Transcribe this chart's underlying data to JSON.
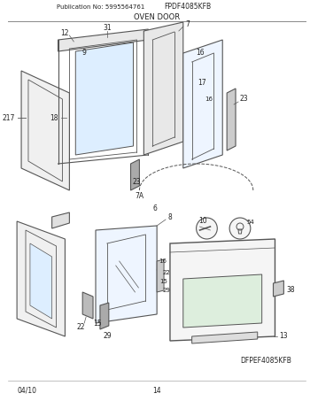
{
  "title_left": "Publication No: 5995564761",
  "title_center": "FPDF4085KFB",
  "section_title": "OVEN DOOR",
  "footer_left": "04/10",
  "footer_center": "14",
  "footer_right": "DFPEF4085KFB",
  "bg_color": "#ffffff",
  "line_color": "#555555",
  "text_color": "#222222",
  "fig_width": 3.5,
  "fig_height": 4.53,
  "dpi": 100
}
